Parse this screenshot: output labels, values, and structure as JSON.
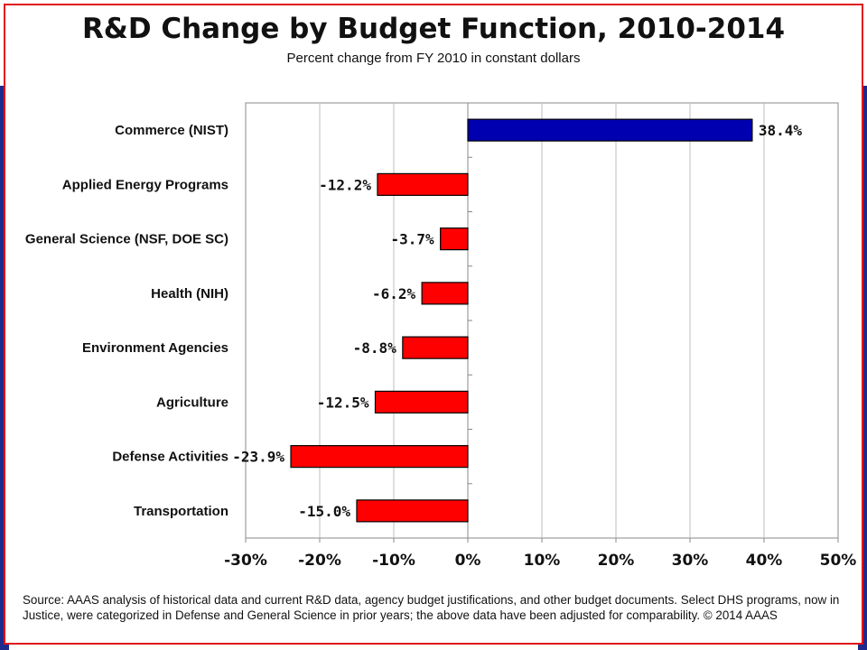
{
  "title": "R&D Change by Budget Function, 2010-2014",
  "subtitle": "Percent change from FY 2010 in constant dollars",
  "source_note": "Source: AAAS analysis of historical data and current R&D data, agency budget justifications, and other budget documents. Select DHS programs, now in Justice, were categorized in Defense and General Science in prior years; the above data have been adjusted for comparability. © 2014 AAAS",
  "colors": {
    "positive_bar": "#0000b0",
    "negative_bar": "#ff0000",
    "frame": "#e0151b",
    "side_band": "#1f2a8c"
  },
  "chart_data": {
    "type": "bar",
    "orientation": "horizontal",
    "categories": [
      "Commerce (NIST)",
      "Applied Energy Programs",
      "General Science (NSF, DOE SC)",
      "Health (NIH)",
      "Environment Agencies",
      "Agriculture",
      "Defense Activities",
      "Transportation"
    ],
    "values": [
      38.4,
      -12.2,
      -3.7,
      -6.2,
      -8.8,
      -12.5,
      -23.9,
      -15.0
    ],
    "data_labels": [
      "38.4%",
      "-12.2%",
      "-3.7%",
      "-6.2%",
      "-8.8%",
      "-12.5%",
      "-23.9%",
      "-15.0%"
    ],
    "xlim": [
      -30,
      50
    ],
    "xticks": [
      -30,
      -20,
      -10,
      0,
      10,
      20,
      30,
      40,
      50
    ],
    "xtick_labels": [
      "-30%",
      "-20%",
      "-10%",
      "0%",
      "10%",
      "20%",
      "30%",
      "40%",
      "50%"
    ],
    "grid": "vertical",
    "legend": "none"
  }
}
